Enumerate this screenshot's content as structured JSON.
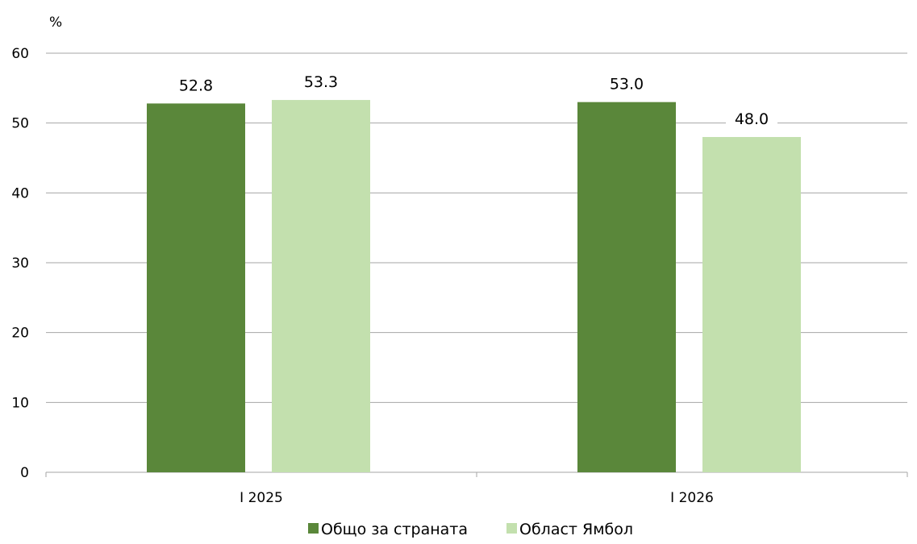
{
  "chart_data": {
    "type": "bar",
    "title": "",
    "unit_label": "%",
    "xlabel": "",
    "ylabel": "",
    "categories": [
      "I 2025",
      "I 2026"
    ],
    "series": [
      {
        "name": "Общо за страната",
        "color": "#5a873a",
        "values": [
          52.8,
          53.0
        ],
        "labels": [
          "52.8",
          "53.0"
        ]
      },
      {
        "name": "Област Ямбол",
        "color": "#c3e0ae",
        "values": [
          53.3,
          48.0
        ],
        "labels": [
          "53.3",
          "48.0"
        ]
      }
    ],
    "ylim": [
      0,
      60
    ],
    "yticks": [
      0,
      10,
      20,
      30,
      40,
      50,
      60
    ],
    "ytick_labels": [
      "0",
      "10",
      "20",
      "30",
      "40",
      "50",
      "60"
    ],
    "grid": true,
    "legend_position": "bottom",
    "colors": {
      "grid": "#a6a6a6",
      "axis": "#a6a6a6"
    }
  }
}
